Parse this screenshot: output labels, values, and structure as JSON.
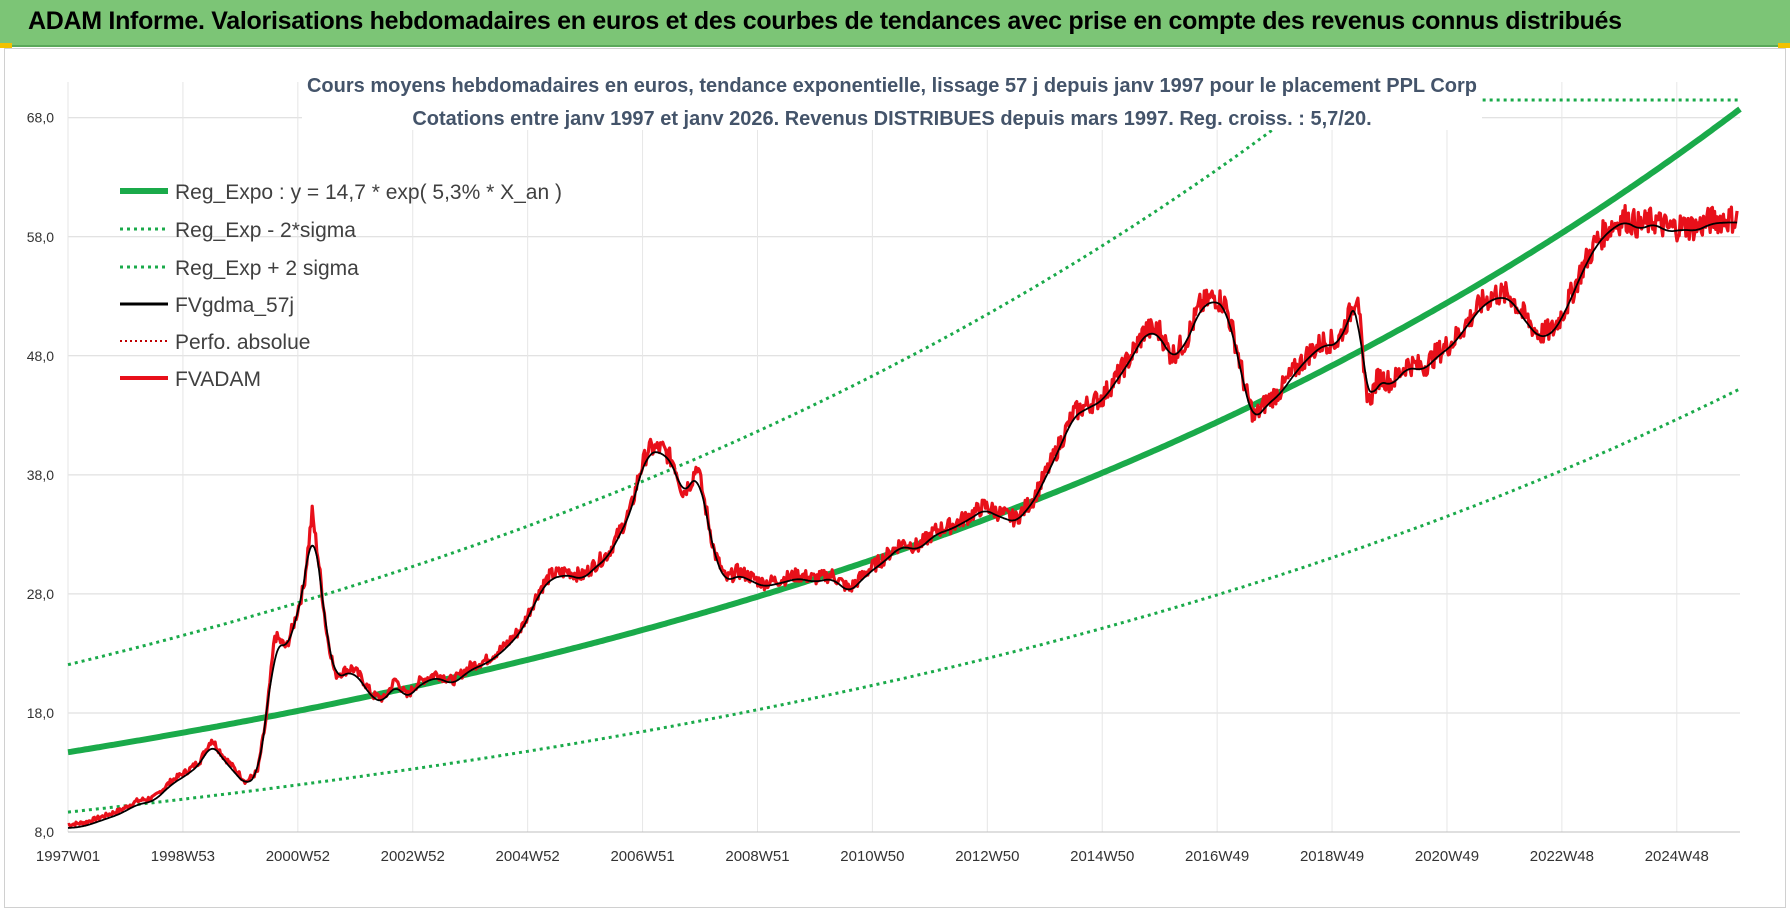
{
  "banner": {
    "title": "ADAM Informe. Valorisations hebdomadaires en euros et des courbes de tendances avec prise en compte des revenus connus distribués"
  },
  "colors": {
    "banner_bg": "#7cc576",
    "trend_green": "#1aaa4a",
    "price_red": "#e8101a",
    "smooth_black": "#000000"
  },
  "chart_data": {
    "type": "line",
    "title": [
      "Cours moyens hebdomadaires en euros, tendance exponentielle, lissage 57 j depuis janv 1997  pour le placement PPL Corp",
      "Cotations entre janv 1997 et janv 2026. Revenus DISTRIBUES depuis mars 1997.  Reg. croiss. : 5,7/20."
    ],
    "xlabel": "",
    "ylabel": "",
    "x_range": [
      1997.0,
      2026.1
    ],
    "ylim": [
      8.0,
      71.0
    ],
    "y_ticks": [
      8.0,
      18.0,
      28.0,
      38.0,
      48.0,
      58.0,
      68.0
    ],
    "y_tick_labels": [
      "8,0",
      "18,0",
      "28,0",
      "38,0",
      "48,0",
      "58,0",
      "68,0"
    ],
    "x_ticks": [
      1997.0,
      1999.0,
      2001.0,
      2003.0,
      2005.0,
      2007.0,
      2009.0,
      2011.0,
      2013.0,
      2015.0,
      2017.0,
      2019.0,
      2021.0,
      2023.0,
      2025.0
    ],
    "x_tick_labels": [
      "1997W01",
      "1998W53",
      "2000W52",
      "2002W52",
      "2004W52",
      "2006W51",
      "2008W51",
      "2010W50",
      "2012W50",
      "2014W50",
      "2016W49",
      "2018W49",
      "2020W49",
      "2022W48",
      "2024W48"
    ],
    "grid": true,
    "legend_position": "top-left",
    "regression": {
      "a": 14.7,
      "rate": 0.053,
      "sigma_factor_low": 0.658,
      "sigma_factor_high": 1.5
    },
    "series": [
      {
        "name": "Reg_Expo : y = 14,7 * exp( 5,3% *  X_an )",
        "style": "thick-green"
      },
      {
        "name": "Reg_Exp - 2*sigma",
        "style": "dotted-green"
      },
      {
        "name": "Reg_Exp + 2 sigma",
        "style": "dotted-green"
      },
      {
        "name": "FVgdma_57j",
        "style": "black"
      },
      {
        "name": "Perfo. absolue",
        "style": "dotted-red"
      },
      {
        "name": "FVADAM",
        "style": "red",
        "points": [
          [
            1997.0,
            8.6
          ],
          [
            1997.3,
            8.8
          ],
          [
            1997.6,
            9.3
          ],
          [
            1997.9,
            9.8
          ],
          [
            1998.2,
            10.6
          ],
          [
            1998.5,
            10.9
          ],
          [
            1998.8,
            12.3
          ],
          [
            1999.1,
            13.2
          ],
          [
            1999.3,
            14.0
          ],
          [
            1999.5,
            15.8
          ],
          [
            1999.7,
            14.4
          ],
          [
            1999.9,
            13.3
          ],
          [
            2000.1,
            12.2
          ],
          [
            2000.3,
            13.1
          ],
          [
            2000.45,
            17.5
          ],
          [
            2000.6,
            24.5
          ],
          [
            2000.8,
            23.5
          ],
          [
            2000.95,
            25.8
          ],
          [
            2001.1,
            28.5
          ],
          [
            2001.25,
            34.8
          ],
          [
            2001.35,
            31.2
          ],
          [
            2001.5,
            24.8
          ],
          [
            2001.65,
            21.2
          ],
          [
            2001.8,
            21.5
          ],
          [
            2001.95,
            21.8
          ],
          [
            2002.1,
            21.0
          ],
          [
            2002.3,
            19.5
          ],
          [
            2002.5,
            19.2
          ],
          [
            2002.7,
            20.8
          ],
          [
            2002.9,
            19.4
          ],
          [
            2003.1,
            20.6
          ],
          [
            2003.4,
            21.3
          ],
          [
            2003.7,
            20.7
          ],
          [
            2004.0,
            21.9
          ],
          [
            2004.3,
            22.5
          ],
          [
            2004.6,
            23.6
          ],
          [
            2004.9,
            25.2
          ],
          [
            2005.2,
            28.3
          ],
          [
            2005.4,
            29.6
          ],
          [
            2005.7,
            29.9
          ],
          [
            2005.95,
            29.5
          ],
          [
            2006.2,
            30.6
          ],
          [
            2006.4,
            31.4
          ],
          [
            2006.6,
            33.2
          ],
          [
            2006.8,
            35.2
          ],
          [
            2006.95,
            38.2
          ],
          [
            2007.1,
            40.2
          ],
          [
            2007.35,
            40.2
          ],
          [
            2007.55,
            39.0
          ],
          [
            2007.7,
            36.5
          ],
          [
            2007.85,
            37.5
          ],
          [
            2007.95,
            38.9
          ],
          [
            2008.1,
            35.2
          ],
          [
            2008.25,
            31.5
          ],
          [
            2008.45,
            29.2
          ],
          [
            2008.65,
            29.9
          ],
          [
            2008.85,
            29.5
          ],
          [
            2009.1,
            28.9
          ],
          [
            2009.4,
            29.2
          ],
          [
            2009.7,
            29.6
          ],
          [
            2010.0,
            29.3
          ],
          [
            2010.3,
            29.6
          ],
          [
            2010.6,
            28.4
          ],
          [
            2010.9,
            29.9
          ],
          [
            2011.2,
            31.0
          ],
          [
            2011.5,
            32.3
          ],
          [
            2011.8,
            32.0
          ],
          [
            2012.1,
            33.3
          ],
          [
            2012.4,
            33.8
          ],
          [
            2012.7,
            34.6
          ],
          [
            2012.95,
            35.4
          ],
          [
            2013.2,
            34.8
          ],
          [
            2013.5,
            34.3
          ],
          [
            2013.8,
            36.0
          ],
          [
            2014.05,
            38.4
          ],
          [
            2014.3,
            41.0
          ],
          [
            2014.5,
            43.2
          ],
          [
            2014.75,
            43.9
          ],
          [
            2015.0,
            44.5
          ],
          [
            2015.25,
            46.2
          ],
          [
            2015.5,
            48.0
          ],
          [
            2015.75,
            50.2
          ],
          [
            2016.0,
            50.1
          ],
          [
            2016.2,
            48.0
          ],
          [
            2016.45,
            49.2
          ],
          [
            2016.7,
            52.2
          ],
          [
            2016.95,
            53.0
          ],
          [
            2017.15,
            52.3
          ],
          [
            2017.35,
            48.5
          ],
          [
            2017.5,
            45.0
          ],
          [
            2017.65,
            42.8
          ],
          [
            2017.85,
            44.1
          ],
          [
            2018.1,
            45.1
          ],
          [
            2018.35,
            46.8
          ],
          [
            2018.6,
            48.2
          ],
          [
            2018.85,
            49.2
          ],
          [
            2019.1,
            49.2
          ],
          [
            2019.3,
            51.4
          ],
          [
            2019.45,
            53.5
          ],
          [
            2019.55,
            46.2
          ],
          [
            2019.65,
            44.2
          ],
          [
            2019.8,
            46.2
          ],
          [
            2020.05,
            45.8
          ],
          [
            2020.3,
            47.3
          ],
          [
            2020.6,
            47.1
          ],
          [
            2020.85,
            48.3
          ],
          [
            2021.1,
            49.2
          ],
          [
            2021.35,
            50.8
          ],
          [
            2021.6,
            52.4
          ],
          [
            2021.85,
            53.2
          ],
          [
            2022.1,
            53.1
          ],
          [
            2022.35,
            51.3
          ],
          [
            2022.6,
            49.8
          ],
          [
            2022.85,
            50.2
          ],
          [
            2023.1,
            52.4
          ],
          [
            2023.35,
            55.3
          ],
          [
            2023.6,
            57.6
          ],
          [
            2023.85,
            58.9
          ],
          [
            2024.1,
            59.6
          ],
          [
            2024.35,
            58.9
          ],
          [
            2024.6,
            59.4
          ],
          [
            2024.85,
            58.7
          ],
          [
            2025.1,
            58.9
          ],
          [
            2025.35,
            58.8
          ],
          [
            2025.6,
            59.4
          ],
          [
            2025.85,
            59.5
          ],
          [
            2026.05,
            59.5
          ]
        ]
      }
    ]
  }
}
